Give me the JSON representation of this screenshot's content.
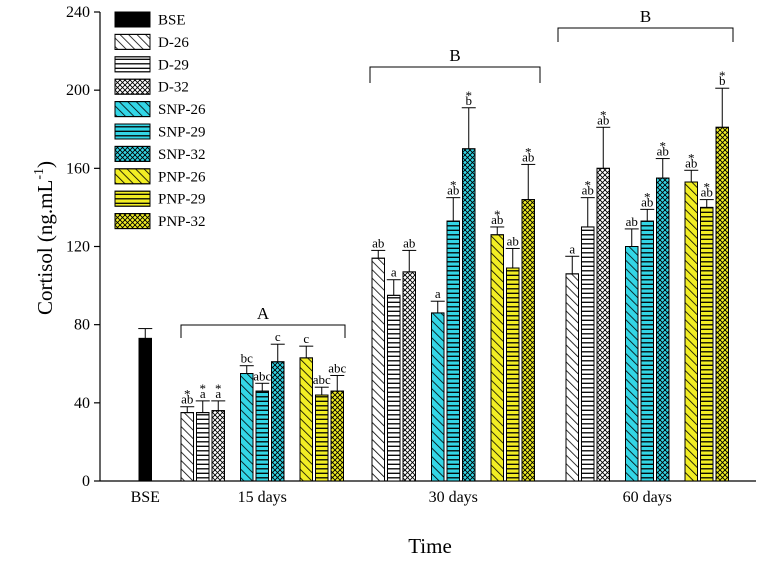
{
  "chart_data": {
    "type": "bar",
    "title": "",
    "xlabel": "Time",
    "ylabel": "Cortisol (ng.mL",
    "ylabel_sup": "-1",
    "ylabel_close": ")",
    "ylim": [
      0,
      240
    ],
    "yticks": [
      "0",
      "40",
      "80",
      "120",
      "160",
      "200",
      "240"
    ],
    "ytick_values": [
      0,
      40,
      80,
      120,
      160,
      200,
      240
    ],
    "grid": false,
    "legend_position": "top-left",
    "colors": {
      "black": "#000000",
      "cyan": "#33d6e6",
      "yellow": "#f2ee24",
      "white": "#ffffff"
    },
    "series": [
      {
        "name": "BSE",
        "fill": "black",
        "pattern": "solid"
      },
      {
        "name": "D-26",
        "fill": "white",
        "pattern": "diag"
      },
      {
        "name": "D-29",
        "fill": "white",
        "pattern": "horiz"
      },
      {
        "name": "D-32",
        "fill": "white",
        "pattern": "cross"
      },
      {
        "name": "SNP-26",
        "fill": "cyan",
        "pattern": "diag"
      },
      {
        "name": "SNP-29",
        "fill": "cyan",
        "pattern": "horiz"
      },
      {
        "name": "SNP-32",
        "fill": "cyan",
        "pattern": "cross"
      },
      {
        "name": "PNP-26",
        "fill": "yellow",
        "pattern": "diag"
      },
      {
        "name": "PNP-29",
        "fill": "yellow",
        "pattern": "horiz"
      },
      {
        "name": "PNP-32",
        "fill": "yellow",
        "pattern": "cross"
      }
    ],
    "groups": [
      {
        "label": "BSE",
        "bars": [
          {
            "series": "BSE",
            "value": 73,
            "error": 5,
            "star": false,
            "letters": ""
          }
        ]
      },
      {
        "label": "15 days",
        "bars": [
          {
            "series": "D-26",
            "value": 35,
            "error": 3,
            "star": true,
            "letters": "ab"
          },
          {
            "series": "D-29",
            "value": 35,
            "error": 6,
            "star": true,
            "letters": "a"
          },
          {
            "series": "D-32",
            "value": 36,
            "error": 5,
            "star": true,
            "letters": "a"
          },
          {
            "series": "SNP-26",
            "value": 55,
            "error": 4,
            "star": false,
            "letters": "bc"
          },
          {
            "series": "SNP-29",
            "value": 46,
            "error": 4,
            "star": false,
            "letters": "abc"
          },
          {
            "series": "SNP-32",
            "value": 61,
            "error": 9,
            "star": false,
            "letters": "c"
          },
          {
            "series": "PNP-26",
            "value": 63,
            "error": 6,
            "star": false,
            "letters": "c"
          },
          {
            "series": "PNP-29",
            "value": 44,
            "error": 4,
            "star": false,
            "letters": "abc"
          },
          {
            "series": "PNP-32",
            "value": 46,
            "error": 8,
            "star": false,
            "letters": "abc"
          }
        ]
      },
      {
        "label": "30 days",
        "bars": [
          {
            "series": "D-26",
            "value": 114,
            "error": 4,
            "star": false,
            "letters": "ab"
          },
          {
            "series": "D-29",
            "value": 95,
            "error": 8,
            "star": false,
            "letters": "a"
          },
          {
            "series": "D-32",
            "value": 107,
            "error": 11,
            "star": false,
            "letters": "ab"
          },
          {
            "series": "SNP-26",
            "value": 86,
            "error": 6,
            "star": false,
            "letters": "a"
          },
          {
            "series": "SNP-29",
            "value": 133,
            "error": 12,
            "star": true,
            "letters": "ab"
          },
          {
            "series": "SNP-32",
            "value": 170,
            "error": 21,
            "star": true,
            "letters": "b"
          },
          {
            "series": "PNP-26",
            "value": 126,
            "error": 4,
            "star": true,
            "letters": "ab"
          },
          {
            "series": "PNP-29",
            "value": 109,
            "error": 10,
            "star": false,
            "letters": "ab"
          },
          {
            "series": "PNP-32",
            "value": 144,
            "error": 18,
            "star": true,
            "letters": "ab"
          }
        ]
      },
      {
        "label": "60 days",
        "bars": [
          {
            "series": "D-26",
            "value": 106,
            "error": 9,
            "star": false,
            "letters": "a"
          },
          {
            "series": "D-29",
            "value": 130,
            "error": 15,
            "star": true,
            "letters": "ab"
          },
          {
            "series": "D-32",
            "value": 160,
            "error": 21,
            "star": true,
            "letters": "ab"
          },
          {
            "series": "SNP-26",
            "value": 120,
            "error": 9,
            "star": false,
            "letters": "ab"
          },
          {
            "series": "SNP-29",
            "value": 133,
            "error": 6,
            "star": true,
            "letters": "ab"
          },
          {
            "series": "SNP-32",
            "value": 155,
            "error": 10,
            "star": true,
            "letters": "ab"
          },
          {
            "series": "PNP-26",
            "value": 153,
            "error": 6,
            "star": true,
            "letters": "ab"
          },
          {
            "series": "PNP-29",
            "value": 140,
            "error": 4,
            "star": true,
            "letters": "ab"
          },
          {
            "series": "PNP-32",
            "value": 181,
            "error": 20,
            "star": true,
            "letters": "b"
          }
        ]
      }
    ],
    "brackets": [
      {
        "label": "A",
        "groups": [
          "15 days"
        ]
      },
      {
        "label": "B",
        "groups": [
          "30 days"
        ]
      },
      {
        "label": "B",
        "groups": [
          "60 days"
        ]
      }
    ]
  }
}
